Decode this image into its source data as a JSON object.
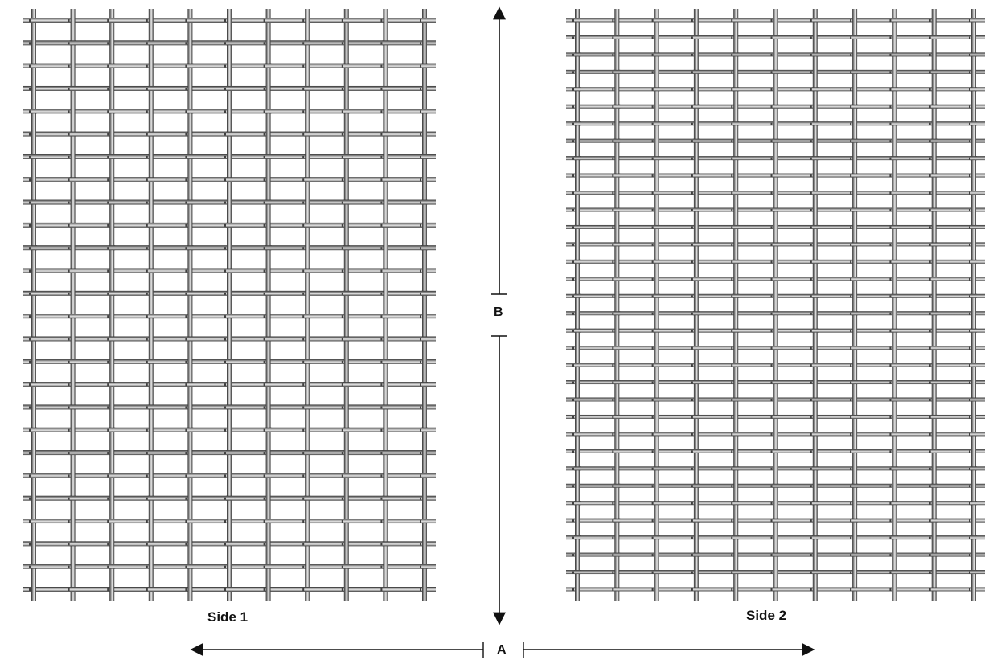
{
  "labels": {
    "side1": "Side 1",
    "side2": "Side 2",
    "dimension_a": "A",
    "dimension_b": "B"
  },
  "colors": {
    "wire_dark": "#3f3f3f",
    "wire_mid": "#8c8c8c",
    "wire_light": "#d6d6d6",
    "line": "#111111",
    "background": "#ffffff"
  }
}
